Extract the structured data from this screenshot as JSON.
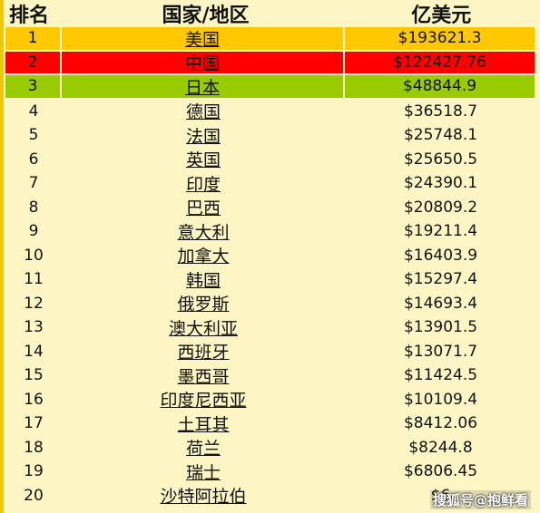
{
  "headers": {
    "rank": "排名",
    "country": "国家/地区",
    "value": "亿美元"
  },
  "highlight_colors": [
    "#ffc800",
    "#ff0000",
    "#99cc00"
  ],
  "rows": [
    {
      "rank": "1",
      "country": "美国",
      "value": "$193621.3"
    },
    {
      "rank": "2",
      "country": "中国",
      "value": "$122427.76"
    },
    {
      "rank": "3",
      "country": "日本",
      "value": "$48844.9"
    },
    {
      "rank": "4",
      "country": "德国",
      "value": "$36518.7"
    },
    {
      "rank": "5",
      "country": "法国",
      "value": "$25748.1"
    },
    {
      "rank": "6",
      "country": "英国",
      "value": "$25650.5"
    },
    {
      "rank": "7",
      "country": "印度",
      "value": "$24390.1"
    },
    {
      "rank": "8",
      "country": "巴西",
      "value": "$20809.2"
    },
    {
      "rank": "9",
      "country": "意大利",
      "value": "$19211.4"
    },
    {
      "rank": "10",
      "country": "加拿大",
      "value": "$16403.9"
    },
    {
      "rank": "11",
      "country": "韩国",
      "value": "$15297.4"
    },
    {
      "rank": "12",
      "country": "俄罗斯",
      "value": "$14693.4"
    },
    {
      "rank": "13",
      "country": "澳大利亚",
      "value": "$13901.5"
    },
    {
      "rank": "14",
      "country": "西班牙",
      "value": "$13071.7"
    },
    {
      "rank": "15",
      "country": "墨西哥",
      "value": "$11424.5"
    },
    {
      "rank": "16",
      "country": "印度尼西亚",
      "value": "$10109.4"
    },
    {
      "rank": "17",
      "country": "土耳其",
      "value": "$8412.06"
    },
    {
      "rank": "18",
      "country": "荷兰",
      "value": "$8244.8"
    },
    {
      "rank": "19",
      "country": "瑞士",
      "value": "$6806.45"
    },
    {
      "rank": "20",
      "country": "沙特阿拉伯",
      "value": "$6"
    }
  ],
  "watermark": "搜狐号@抱鲜看"
}
